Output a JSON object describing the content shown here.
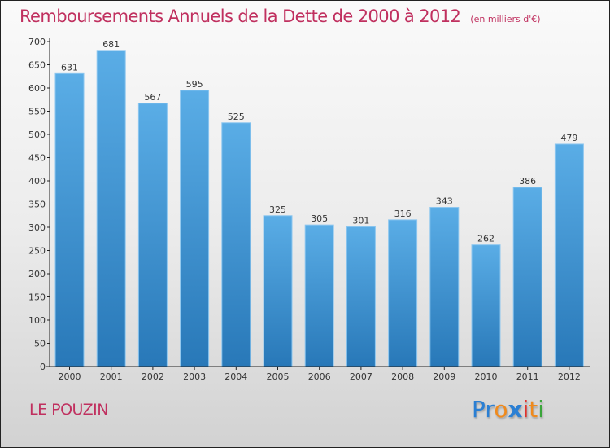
{
  "header": {
    "title": "Remboursements Annuels de la Dette de 2000 à 2012",
    "unit_note": "(en milliers d'€)"
  },
  "footer": {
    "place": "LE POUZIN",
    "logo": {
      "letters": [
        {
          "char": "P",
          "color": "#2a7fd4"
        },
        {
          "char": "r",
          "color": "#2a7fd4"
        },
        {
          "char": "o",
          "color": "#f08a1c"
        },
        {
          "char": "x",
          "color": "#2a7fd4"
        },
        {
          "char": "i",
          "color": "#e0312b"
        },
        {
          "char": "t",
          "color": "#f08a1c"
        },
        {
          "char": "i",
          "color": "#3aa53a"
        }
      ]
    }
  },
  "chart_data": {
    "type": "bar",
    "title": "Remboursements Annuels de la Dette de 2000 à 2012",
    "subtitle": "(en milliers d'€)",
    "xlabel": "",
    "ylabel": "",
    "categories": [
      "2000",
      "2001",
      "2002",
      "2003",
      "2004",
      "2005",
      "2006",
      "2007",
      "2008",
      "2009",
      "2010",
      "2011",
      "2012"
    ],
    "values": [
      631,
      681,
      567,
      595,
      525,
      325,
      305,
      301,
      316,
      343,
      262,
      386,
      479
    ],
    "ylim": [
      0,
      700
    ],
    "yticks": [
      0,
      50,
      100,
      150,
      200,
      250,
      300,
      350,
      400,
      450,
      500,
      550,
      600,
      650,
      700
    ],
    "grid": false,
    "legend": "none",
    "bar_color_top": "#5aade6",
    "bar_color_bottom": "#2878b8",
    "data_labels": true
  }
}
